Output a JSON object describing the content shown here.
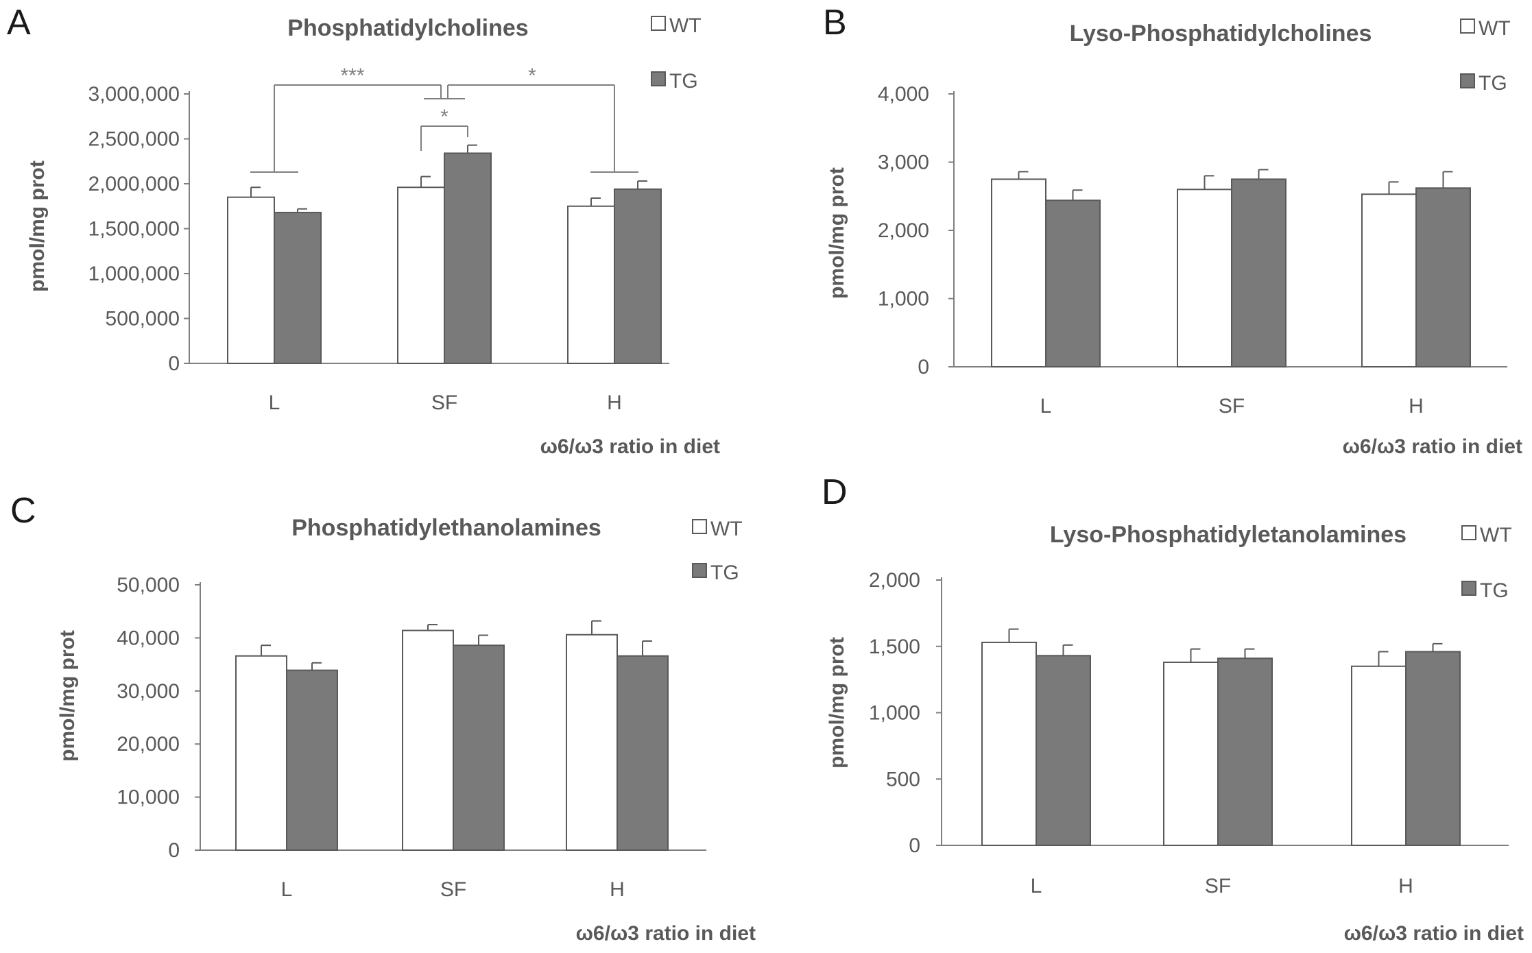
{
  "colors": {
    "wt_fill": "#ffffff",
    "tg_fill": "#7a7a7a",
    "edge": "#595959",
    "axis": "#7f7f7f",
    "text": "#595959",
    "bracket": "#7f7f7f"
  },
  "chart_data": [
    {
      "id": "A",
      "type": "bar",
      "panel_letter": "A",
      "title": "Phosphatidylcholines",
      "xlabel": "ω6/ω3 ratio in diet",
      "ylabel": "pmol/mg prot",
      "categories": [
        "L",
        "SF",
        "H"
      ],
      "series": [
        {
          "name": "WT",
          "values": [
            1850000,
            1960000,
            1750000
          ],
          "errors": [
            110000,
            120000,
            90000
          ]
        },
        {
          "name": "TG",
          "values": [
            1680000,
            2340000,
            1940000
          ],
          "errors": [
            40000,
            90000,
            90000
          ]
        }
      ],
      "ylim": [
        0,
        3000000
      ],
      "yticks": [
        0,
        500000,
        1000000,
        1500000,
        2000000,
        2500000,
        3000000
      ],
      "ytick_labels": [
        "0",
        "500,000",
        "1,000,000",
        "1,500,000",
        "2,000,000",
        "2,500,000",
        "3,000,000"
      ],
      "legend_position": "top-right",
      "significance": [
        {
          "label": "***",
          "from": "L",
          "to": "SF"
        },
        {
          "label": "*",
          "from": "SF",
          "to": "H"
        },
        {
          "label": "*",
          "from": "SF-WT",
          "to": "SF-TG"
        }
      ]
    },
    {
      "id": "B",
      "type": "bar",
      "panel_letter": "B",
      "title": "Lyso-Phosphatidylcholines",
      "xlabel": "ω6/ω3 ratio in diet",
      "ylabel": "pmol/mg prot",
      "categories": [
        "L",
        "SF",
        "H"
      ],
      "series": [
        {
          "name": "WT",
          "values": [
            2750,
            2600,
            2530
          ],
          "errors": [
            110,
            200,
            180
          ]
        },
        {
          "name": "TG",
          "values": [
            2440,
            2750,
            2620
          ],
          "errors": [
            150,
            140,
            240
          ]
        }
      ],
      "ylim": [
        0,
        4000
      ],
      "yticks": [
        0,
        1000,
        2000,
        3000,
        4000
      ],
      "ytick_labels": [
        "0",
        "1,000",
        "2,000",
        "3,000",
        "4,000"
      ],
      "legend_position": "top-right"
    },
    {
      "id": "C",
      "type": "bar",
      "panel_letter": "C",
      "title": "Phosphatidylethanolamines",
      "xlabel": "ω6/ω3 ratio in diet",
      "ylabel": "pmol/mg prot",
      "categories": [
        "L",
        "SF",
        "H"
      ],
      "series": [
        {
          "name": "WT",
          "values": [
            36600,
            41400,
            40600
          ],
          "errors": [
            2000,
            1100,
            2600
          ]
        },
        {
          "name": "TG",
          "values": [
            33900,
            38600,
            36600
          ],
          "errors": [
            1400,
            1900,
            2800
          ]
        }
      ],
      "ylim": [
        0,
        50000
      ],
      "yticks": [
        0,
        10000,
        20000,
        30000,
        40000,
        50000
      ],
      "ytick_labels": [
        "0",
        "10,000",
        "20,000",
        "30,000",
        "40,000",
        "50,000"
      ],
      "legend_position": "top-right"
    },
    {
      "id": "D",
      "type": "bar",
      "panel_letter": "D",
      "title": "Lyso-Phosphatidyletanolamines",
      "xlabel": "ω6/ω3 ratio in diet",
      "ylabel": "pmol/mg prot",
      "categories": [
        "L",
        "SF",
        "H"
      ],
      "series": [
        {
          "name": "WT",
          "values": [
            1530,
            1380,
            1350
          ],
          "errors": [
            100,
            100,
            110
          ]
        },
        {
          "name": "TG",
          "values": [
            1430,
            1410,
            1460
          ],
          "errors": [
            80,
            70,
            60
          ]
        }
      ],
      "ylim": [
        0,
        2000
      ],
      "yticks": [
        0,
        500,
        1000,
        1500,
        2000
      ],
      "ytick_labels": [
        "0",
        "500",
        "1,000",
        "1,500",
        "2,000"
      ],
      "legend_position": "top-right"
    }
  ]
}
